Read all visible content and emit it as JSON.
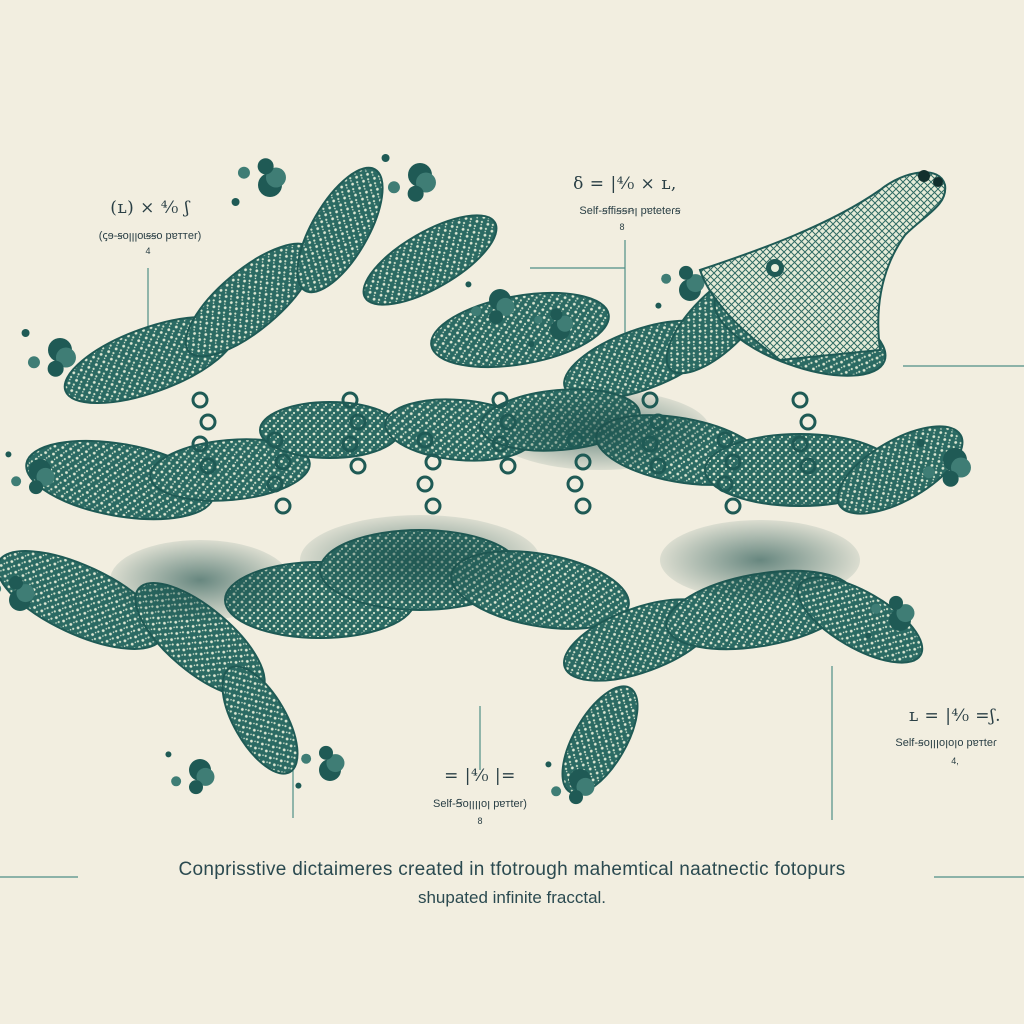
{
  "colors": {
    "background": "#f2eee0",
    "fractal_dark": "#1f5a55",
    "fractal_mid": "#3f7d75",
    "fractal_light": "#e4ecd8",
    "ink": "#2a3f45",
    "leader_line": "#4f8f86"
  },
  "annotations": [
    {
      "formula": "(ʟ) × ⁴⁄₀ ʃ",
      "description": "(ꞔɘ-ꞩoꞁꞁꞁoɩꞩꞩo pɐᴛᴛer)",
      "mark": "4"
    },
    {
      "formula": "δ = |⁴⁄₀ × ʟ,",
      "description": "Self-ꞩffiꞩꞩꞥꞁ pɐteteɾꞩ",
      "mark": "8"
    },
    {
      "formula": "ʟ = |⁴⁄₀ =ʃ.",
      "description": "Self-ꞩoꞁꞁꞁoꞁoꞁo pɐᴛteɾ",
      "mark": "4,"
    },
    {
      "formula": "= |⁴⁄₀ |=",
      "description": "Self-Ꞩoꞁꞁꞁꞁoꞁ pɐᴛter)",
      "mark": "8"
    }
  ],
  "caption": {
    "line1": "Conprisstive dictaimeres created in tfotrough mahemtical naatnectic fotopurs",
    "line2": "shupated infinite fracctal."
  },
  "icons": [
    "fractal-creature-icon"
  ]
}
